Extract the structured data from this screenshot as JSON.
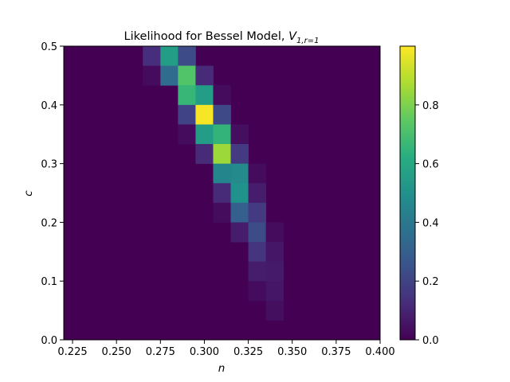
{
  "chart_data": {
    "type": "heatmap",
    "title": "Likelihood for Bessel Model, ",
    "title_math_base": "V",
    "title_math_sub": "1,r=1",
    "xlabel": "n",
    "ylabel": "c",
    "xlim": [
      0.22,
      0.4
    ],
    "ylim": [
      0.0,
      0.5
    ],
    "x_ticks": [
      "0.225",
      "0.250",
      "0.275",
      "0.300",
      "0.325",
      "0.350",
      "0.375",
      "0.400"
    ],
    "x_tick_values": [
      0.225,
      0.25,
      0.275,
      0.3,
      0.325,
      0.35,
      0.375,
      0.4
    ],
    "y_ticks": [
      "0.0",
      "0.1",
      "0.2",
      "0.3",
      "0.4",
      "0.5"
    ],
    "y_tick_values": [
      0.0,
      0.1,
      0.2,
      0.3,
      0.4,
      0.5
    ],
    "colorbar": {
      "colormap": "viridis",
      "range": [
        0.0,
        1.0
      ],
      "ticks": [
        "0.0",
        "0.2",
        "0.4",
        "0.6",
        "0.8"
      ],
      "tick_values": [
        0.0,
        0.2,
        0.4,
        0.6,
        0.8
      ]
    },
    "grid": false,
    "background_value": 0.0,
    "cells": [
      {
        "n": 0.27,
        "c": 0.4833,
        "v": 0.13
      },
      {
        "n": 0.28,
        "c": 0.4833,
        "v": 0.55
      },
      {
        "n": 0.29,
        "c": 0.4833,
        "v": 0.23
      },
      {
        "n": 0.27,
        "c": 0.45,
        "v": 0.03
      },
      {
        "n": 0.28,
        "c": 0.45,
        "v": 0.35
      },
      {
        "n": 0.29,
        "c": 0.45,
        "v": 0.72
      },
      {
        "n": 0.3,
        "c": 0.45,
        "v": 0.12
      },
      {
        "n": 0.29,
        "c": 0.4167,
        "v": 0.66
      },
      {
        "n": 0.3,
        "c": 0.4167,
        "v": 0.55
      },
      {
        "n": 0.31,
        "c": 0.4167,
        "v": 0.03
      },
      {
        "n": 0.29,
        "c": 0.3833,
        "v": 0.2
      },
      {
        "n": 0.3,
        "c": 0.3833,
        "v": 0.99
      },
      {
        "n": 0.31,
        "c": 0.3833,
        "v": 0.22
      },
      {
        "n": 0.29,
        "c": 0.35,
        "v": 0.03
      },
      {
        "n": 0.3,
        "c": 0.35,
        "v": 0.55
      },
      {
        "n": 0.31,
        "c": 0.35,
        "v": 0.65
      },
      {
        "n": 0.32,
        "c": 0.35,
        "v": 0.04
      },
      {
        "n": 0.3,
        "c": 0.3167,
        "v": 0.12
      },
      {
        "n": 0.31,
        "c": 0.3167,
        "v": 0.85
      },
      {
        "n": 0.32,
        "c": 0.3167,
        "v": 0.17
      },
      {
        "n": 0.31,
        "c": 0.2833,
        "v": 0.45
      },
      {
        "n": 0.32,
        "c": 0.2833,
        "v": 0.47
      },
      {
        "n": 0.33,
        "c": 0.2833,
        "v": 0.03
      },
      {
        "n": 0.31,
        "c": 0.25,
        "v": 0.12
      },
      {
        "n": 0.32,
        "c": 0.25,
        "v": 0.5
      },
      {
        "n": 0.33,
        "c": 0.25,
        "v": 0.08
      },
      {
        "n": 0.31,
        "c": 0.2167,
        "v": 0.03
      },
      {
        "n": 0.32,
        "c": 0.2167,
        "v": 0.3
      },
      {
        "n": 0.33,
        "c": 0.2167,
        "v": 0.17
      },
      {
        "n": 0.32,
        "c": 0.1833,
        "v": 0.08
      },
      {
        "n": 0.33,
        "c": 0.1833,
        "v": 0.23
      },
      {
        "n": 0.34,
        "c": 0.1833,
        "v": 0.03
      },
      {
        "n": 0.33,
        "c": 0.15,
        "v": 0.15
      },
      {
        "n": 0.34,
        "c": 0.15,
        "v": 0.06
      },
      {
        "n": 0.33,
        "c": 0.1167,
        "v": 0.08
      },
      {
        "n": 0.34,
        "c": 0.1167,
        "v": 0.07
      },
      {
        "n": 0.33,
        "c": 0.0833,
        "v": 0.03
      },
      {
        "n": 0.34,
        "c": 0.0833,
        "v": 0.06
      },
      {
        "n": 0.34,
        "c": 0.05,
        "v": 0.04
      }
    ],
    "cell_width": 0.01,
    "cell_height": 0.03333
  }
}
